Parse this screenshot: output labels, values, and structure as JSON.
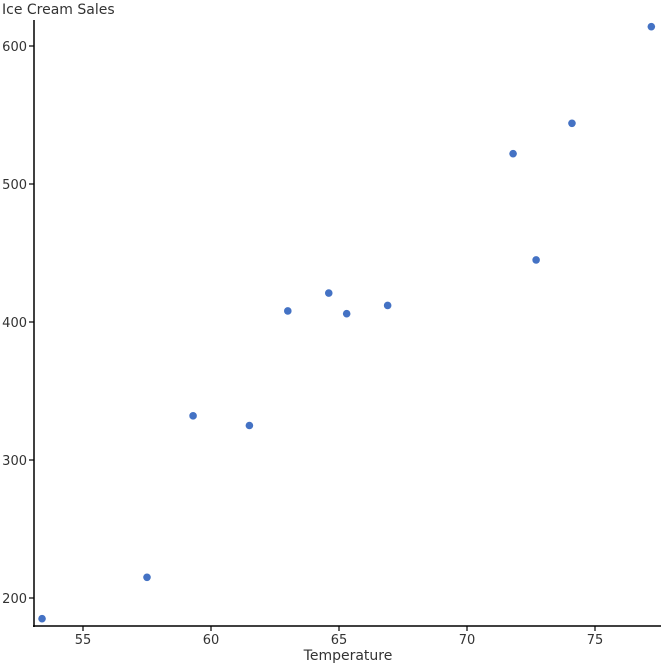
{
  "chart_data": {
    "type": "scatter",
    "title": "",
    "xlabel": "Temperature",
    "ylabel": "Ice Cream Sales",
    "xlim": [
      53.0,
      77.5
    ],
    "ylim": [
      180,
      620
    ],
    "x_ticks": [
      55,
      60,
      65,
      70,
      75
    ],
    "y_ticks": [
      200,
      300,
      400,
      500,
      600
    ],
    "grid": false,
    "legend": null,
    "marker_color": "#4472c4",
    "points": [
      {
        "x": 53.4,
        "y": 185
      },
      {
        "x": 57.5,
        "y": 215
      },
      {
        "x": 59.3,
        "y": 332
      },
      {
        "x": 61.5,
        "y": 325
      },
      {
        "x": 63.0,
        "y": 408
      },
      {
        "x": 64.6,
        "y": 421
      },
      {
        "x": 65.3,
        "y": 406
      },
      {
        "x": 66.9,
        "y": 412
      },
      {
        "x": 71.8,
        "y": 522
      },
      {
        "x": 72.7,
        "y": 445
      },
      {
        "x": 74.1,
        "y": 544
      },
      {
        "x": 77.2,
        "y": 614
      }
    ]
  }
}
